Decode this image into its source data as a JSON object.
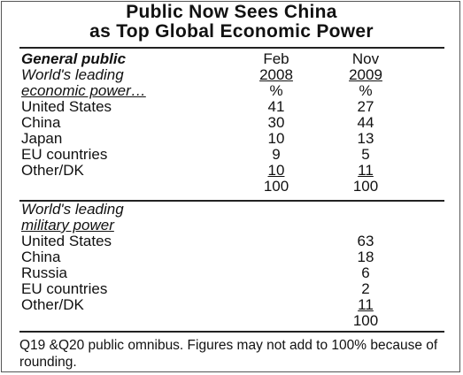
{
  "chart_data": {
    "type": "table",
    "title_line1": "Public Now Sees China",
    "title_line2": "as Top Global Economic Power",
    "header": {
      "group": "General public",
      "col1_month": "Feb",
      "col2_month": "Nov",
      "col1_year": "2008",
      "col2_year": "2009",
      "unit": "%"
    },
    "economic": {
      "label_line1": "World's leading",
      "label_line2": "economic power…",
      "rows": [
        {
          "name": "United States",
          "feb2008": "41",
          "nov2009": "27"
        },
        {
          "name": "China",
          "feb2008": "30",
          "nov2009": "44"
        },
        {
          "name": "Japan",
          "feb2008": "10",
          "nov2009": "13"
        },
        {
          "name": "EU countries",
          "feb2008": "9",
          "nov2009": "5"
        },
        {
          "name": "Other/DK",
          "feb2008": "10",
          "nov2009": "11"
        }
      ],
      "total_feb2008": "100",
      "total_nov2009": "100"
    },
    "military": {
      "label_line1": "World's leading",
      "label_line2": "military power",
      "rows": [
        {
          "name": "United States",
          "nov2009": "63"
        },
        {
          "name": "China",
          "nov2009": "18"
        },
        {
          "name": "Russia",
          "nov2009": "6"
        },
        {
          "name": "EU countries",
          "nov2009": "2"
        },
        {
          "name": "Other/DK",
          "nov2009": "11"
        }
      ],
      "total_nov2009": "100"
    },
    "note": "Q19 &Q20 public omnibus. Figures may not add to 100% because of rounding."
  }
}
